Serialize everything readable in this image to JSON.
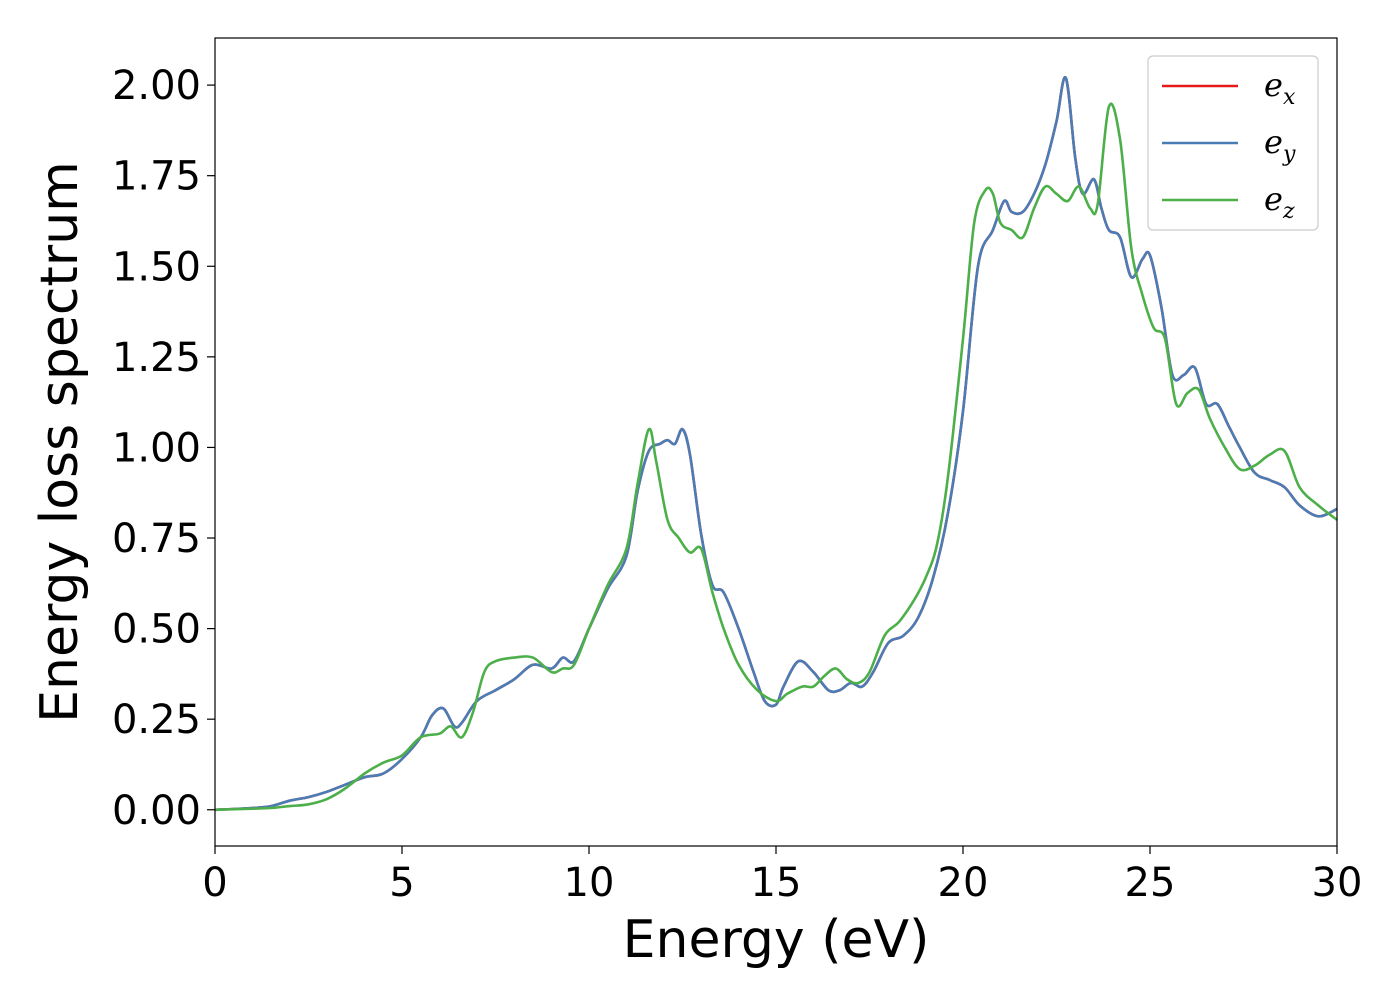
{
  "chart_data": {
    "type": "line",
    "title": "",
    "xlabel": "Energy (eV)",
    "ylabel": "Energy loss spectrum",
    "xlim": [
      0,
      30
    ],
    "ylim": [
      -0.1,
      2.13
    ],
    "x_ticks": [
      "0",
      "5",
      "10",
      "15",
      "20",
      "25",
      "30"
    ],
    "y_ticks": [
      "0.00",
      "0.25",
      "0.50",
      "0.75",
      "1.00",
      "1.25",
      "1.50",
      "1.75",
      "2.00"
    ],
    "grid": false,
    "legend_position": "top-right",
    "series": [
      {
        "name": "e",
        "subscript": "x",
        "color": "#e41a1c",
        "x": [
          0,
          1,
          1.5,
          2,
          2.5,
          3,
          3.5,
          4,
          4.5,
          5,
          5.5,
          5.8,
          6.1,
          6.4,
          6.6,
          7,
          7.5,
          8,
          8.5,
          9,
          9.3,
          9.6,
          10,
          10.5,
          11,
          11.3,
          11.6,
          11.9,
          12.1,
          12.3,
          12.5,
          12.7,
          13,
          13.3,
          13.6,
          14,
          14.4,
          14.7,
          15,
          15.2,
          15.6,
          16,
          16.4,
          16.7,
          17,
          17.3,
          17.6,
          18,
          18.4,
          18.8,
          19.2,
          19.6,
          20,
          20.4,
          20.8,
          21.1,
          21.3,
          21.6,
          21.9,
          22.2,
          22.5,
          22.75,
          23,
          23.2,
          23.5,
          23.7,
          23.9,
          24.2,
          24.5,
          24.8,
          25,
          25.3,
          25.6,
          25.9,
          26.2,
          26.5,
          26.8,
          27.1,
          27.4,
          27.8,
          28.2,
          28.6,
          29,
          29.5,
          30
        ],
        "y": [
          0,
          0.005,
          0.01,
          0.025,
          0.035,
          0.05,
          0.07,
          0.09,
          0.1,
          0.14,
          0.2,
          0.26,
          0.28,
          0.23,
          0.24,
          0.3,
          0.33,
          0.36,
          0.4,
          0.39,
          0.42,
          0.41,
          0.5,
          0.61,
          0.7,
          0.88,
          0.99,
          1.01,
          1.02,
          1.01,
          1.05,
          0.98,
          0.76,
          0.62,
          0.6,
          0.5,
          0.38,
          0.3,
          0.29,
          0.34,
          0.41,
          0.38,
          0.33,
          0.33,
          0.35,
          0.34,
          0.38,
          0.46,
          0.48,
          0.53,
          0.64,
          0.82,
          1.1,
          1.5,
          1.6,
          1.68,
          1.65,
          1.65,
          1.7,
          1.78,
          1.9,
          2.02,
          1.8,
          1.7,
          1.74,
          1.66,
          1.6,
          1.58,
          1.47,
          1.52,
          1.53,
          1.39,
          1.2,
          1.2,
          1.22,
          1.12,
          1.12,
          1.06,
          1.0,
          0.93,
          0.91,
          0.89,
          0.84,
          0.81,
          0.83
        ],
        "visible_note": ""
      },
      {
        "name": "e",
        "subscript": "y",
        "color": "#4a7db5",
        "x": [
          0,
          1,
          1.5,
          2,
          2.5,
          3,
          3.5,
          4,
          4.5,
          5,
          5.5,
          5.8,
          6.1,
          6.4,
          6.6,
          7,
          7.5,
          8,
          8.5,
          9,
          9.3,
          9.6,
          10,
          10.5,
          11,
          11.3,
          11.6,
          11.9,
          12.1,
          12.3,
          12.5,
          12.7,
          13,
          13.3,
          13.6,
          14,
          14.4,
          14.7,
          15,
          15.2,
          15.6,
          16,
          16.4,
          16.7,
          17,
          17.3,
          17.6,
          18,
          18.4,
          18.8,
          19.2,
          19.6,
          20,
          20.4,
          20.8,
          21.1,
          21.3,
          21.6,
          21.9,
          22.2,
          22.5,
          22.75,
          23,
          23.2,
          23.5,
          23.7,
          23.9,
          24.2,
          24.5,
          24.8,
          25,
          25.3,
          25.6,
          25.9,
          26.2,
          26.5,
          26.8,
          27.1,
          27.4,
          27.8,
          28.2,
          28.6,
          29,
          29.5,
          30
        ],
        "y": [
          0,
          0.005,
          0.01,
          0.025,
          0.035,
          0.05,
          0.07,
          0.09,
          0.1,
          0.14,
          0.2,
          0.26,
          0.28,
          0.23,
          0.24,
          0.3,
          0.33,
          0.36,
          0.4,
          0.39,
          0.42,
          0.41,
          0.5,
          0.61,
          0.7,
          0.88,
          0.99,
          1.01,
          1.02,
          1.01,
          1.05,
          0.98,
          0.76,
          0.62,
          0.6,
          0.5,
          0.38,
          0.3,
          0.29,
          0.34,
          0.41,
          0.38,
          0.33,
          0.33,
          0.35,
          0.34,
          0.38,
          0.46,
          0.48,
          0.53,
          0.64,
          0.82,
          1.1,
          1.5,
          1.6,
          1.68,
          1.65,
          1.65,
          1.7,
          1.78,
          1.9,
          2.02,
          1.8,
          1.7,
          1.74,
          1.66,
          1.6,
          1.58,
          1.47,
          1.52,
          1.53,
          1.39,
          1.2,
          1.2,
          1.22,
          1.12,
          1.12,
          1.06,
          1.0,
          0.93,
          0.91,
          0.89,
          0.84,
          0.81,
          0.83
        ]
      },
      {
        "name": "e",
        "subscript": "z",
        "color": "#4daf4a",
        "x": [
          0,
          1,
          1.5,
          2,
          2.5,
          3,
          3.5,
          4,
          4.5,
          5,
          5.5,
          6,
          6.3,
          6.6,
          6.9,
          7.2,
          7.5,
          8,
          8.5,
          9,
          9.3,
          9.6,
          10,
          10.5,
          11,
          11.3,
          11.6,
          11.8,
          12.1,
          12.4,
          12.7,
          13,
          13.3,
          13.6,
          14,
          14.5,
          15,
          15.3,
          15.7,
          16,
          16.3,
          16.6,
          16.9,
          17.2,
          17.5,
          17.9,
          18.3,
          18.7,
          19,
          19.3,
          19.6,
          20,
          20.3,
          20.6,
          20.8,
          21.0,
          21.3,
          21.6,
          21.9,
          22.2,
          22.5,
          22.8,
          23.1,
          23.4,
          23.6,
          23.9,
          24.2,
          24.5,
          24.8,
          25.1,
          25.4,
          25.7,
          26,
          26.3,
          26.6,
          27,
          27.4,
          27.8,
          28.2,
          28.6,
          29,
          29.5,
          30
        ],
        "y": [
          0,
          0.003,
          0.005,
          0.01,
          0.015,
          0.03,
          0.06,
          0.1,
          0.13,
          0.15,
          0.2,
          0.21,
          0.23,
          0.2,
          0.27,
          0.38,
          0.41,
          0.42,
          0.42,
          0.38,
          0.39,
          0.4,
          0.5,
          0.62,
          0.72,
          0.9,
          1.05,
          0.96,
          0.8,
          0.75,
          0.71,
          0.72,
          0.6,
          0.5,
          0.4,
          0.33,
          0.3,
          0.32,
          0.34,
          0.34,
          0.37,
          0.39,
          0.36,
          0.35,
          0.38,
          0.48,
          0.52,
          0.58,
          0.64,
          0.73,
          0.92,
          1.3,
          1.62,
          1.71,
          1.7,
          1.62,
          1.6,
          1.58,
          1.66,
          1.72,
          1.7,
          1.68,
          1.72,
          1.66,
          1.67,
          1.94,
          1.85,
          1.55,
          1.42,
          1.33,
          1.3,
          1.12,
          1.15,
          1.16,
          1.08,
          1.0,
          0.94,
          0.95,
          0.98,
          0.99,
          0.89,
          0.84,
          0.8
        ]
      }
    ]
  }
}
